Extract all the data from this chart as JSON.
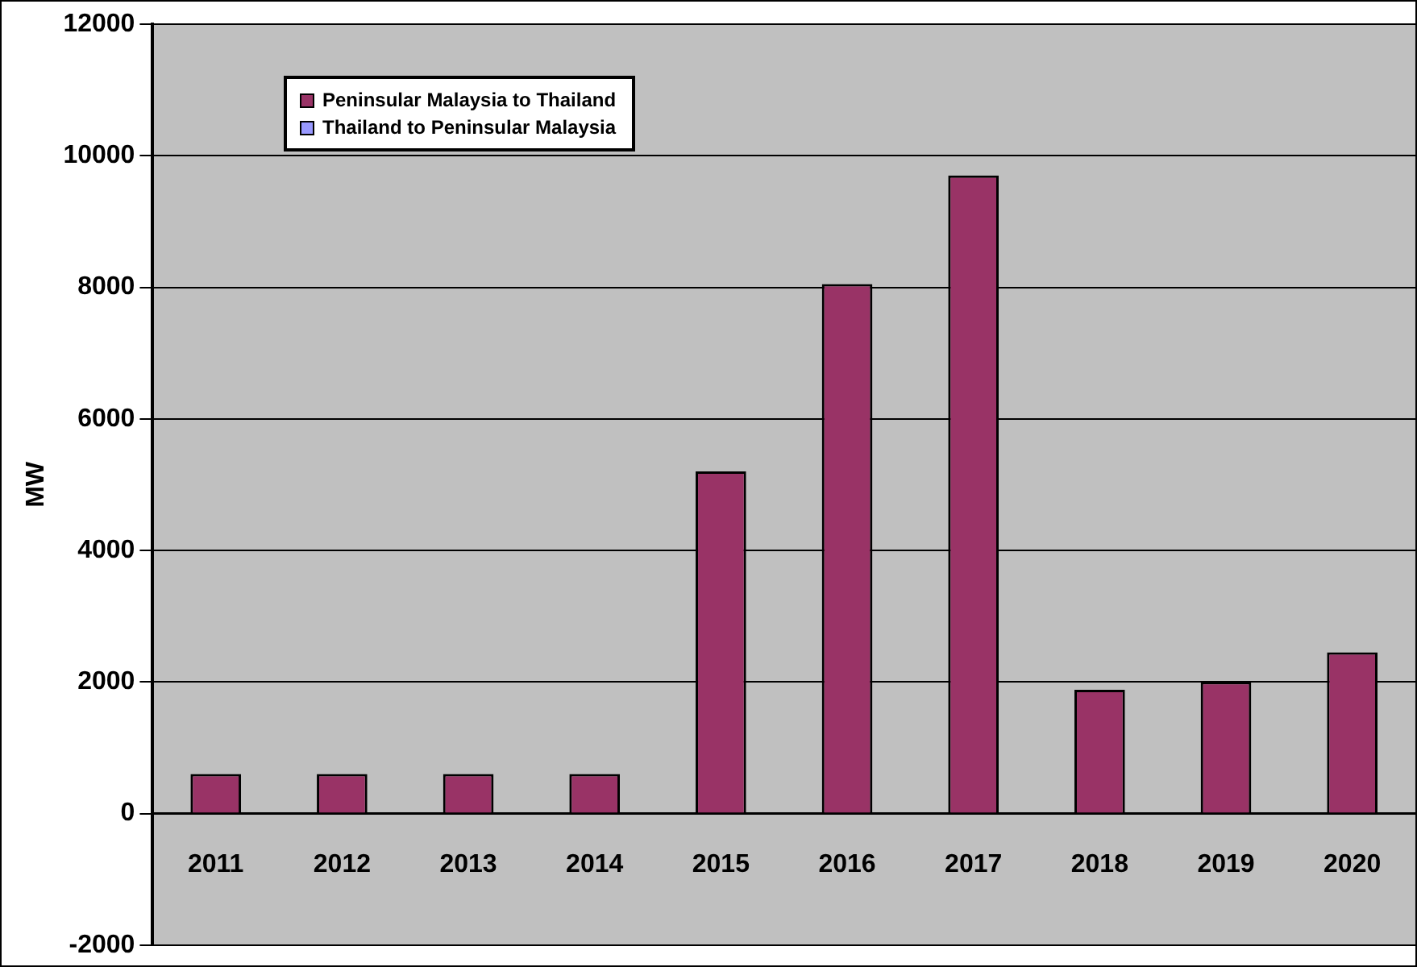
{
  "chart_data": {
    "type": "bar",
    "ylabel": "MW",
    "categories": [
      "2011",
      "2012",
      "2013",
      "2014",
      "2015",
      "2016",
      "2017",
      "2018",
      "2019",
      "2020"
    ],
    "series": [
      {
        "name": "Peninsular Malaysia to Thailand",
        "color": "#993366",
        "values": [
          600,
          600,
          600,
          600,
          5200,
          8050,
          9700,
          1880,
          2000,
          2450
        ]
      },
      {
        "name": "Thailand to Peninsular Malaysia",
        "color": "#9999ff",
        "values": [
          null,
          null,
          null,
          null,
          null,
          null,
          null,
          null,
          null,
          null
        ]
      }
    ],
    "stacked": true,
    "ylim": [
      -2000,
      12000
    ],
    "yticks": [
      -2000,
      0,
      2000,
      4000,
      6000,
      8000,
      10000,
      12000
    ],
    "grid": "y",
    "legend": "top left"
  }
}
